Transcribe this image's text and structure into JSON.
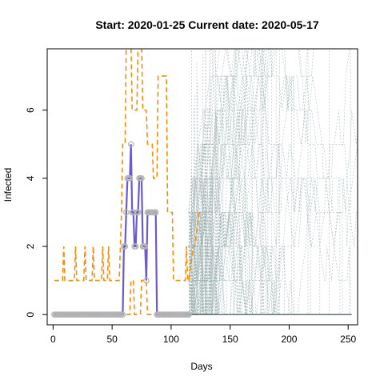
{
  "chart_data": {
    "type": "line",
    "title": "Start:  2020-01-25   Current date:  2020-05-17",
    "xlabel": "Days",
    "ylabel": "Infected",
    "xlim": [
      -5,
      258
    ],
    "ylim": [
      -0.3,
      7.8
    ],
    "xticks": [
      0,
      50,
      100,
      150,
      200,
      250
    ],
    "yticks": [
      0,
      2,
      4,
      6
    ],
    "grid": false,
    "legend": "none",
    "colors": {
      "observed_line": "#6a5acd",
      "observed_points": "#b4b4b4",
      "bounds": "#ff8c00",
      "simulations": "#9fb2b2",
      "prediction": "#4a6a6a"
    },
    "series": [
      {
        "style": "observed",
        "x": [
          1,
          2,
          3,
          4,
          5,
          6,
          7,
          8,
          9,
          10,
          11,
          12,
          13,
          14,
          15,
          16,
          17,
          18,
          19,
          20,
          21,
          22,
          23,
          24,
          25,
          26,
          27,
          28,
          29,
          30,
          31,
          32,
          33,
          34,
          35,
          36,
          37,
          38,
          39,
          40,
          41,
          42,
          43,
          44,
          45,
          46,
          47,
          48,
          49,
          50,
          51,
          52,
          53,
          54,
          55,
          56,
          57,
          58,
          59,
          60,
          61,
          62,
          63,
          64,
          65,
          66,
          67,
          68,
          69,
          70,
          71,
          72,
          73,
          74,
          75,
          76,
          77,
          78,
          79,
          80,
          81,
          82,
          83,
          84,
          85,
          86,
          87,
          88,
          89,
          90,
          91,
          92,
          93,
          94,
          95,
          96,
          97,
          98,
          99,
          100,
          101,
          102,
          103,
          104,
          105,
          106,
          107,
          108,
          109,
          110,
          111,
          112,
          113,
          114,
          115
        ],
        "y": [
          0,
          0,
          0,
          0,
          0,
          0,
          0,
          0,
          0,
          0,
          0,
          0,
          0,
          0,
          0,
          0,
          0,
          0,
          0,
          0,
          0,
          0,
          0,
          0,
          0,
          0,
          0,
          0,
          0,
          0,
          0,
          0,
          0,
          0,
          0,
          0,
          0,
          0,
          0,
          0,
          0,
          0,
          0,
          0,
          0,
          0,
          0,
          0,
          0,
          0,
          0,
          0,
          0,
          0,
          0,
          0,
          0,
          0,
          0,
          2,
          2,
          3,
          4,
          4,
          4,
          5,
          3,
          3,
          2,
          2,
          3,
          3,
          4,
          4,
          4,
          2,
          2,
          2,
          1,
          3,
          3,
          3,
          3,
          3,
          3,
          3,
          3,
          0,
          0,
          0,
          0,
          0,
          0,
          0,
          0,
          0,
          0,
          0,
          0,
          0,
          0,
          0,
          0,
          0,
          0,
          0,
          0,
          0,
          0,
          0,
          0,
          0,
          0,
          0,
          0
        ]
      },
      {
        "style": "bound",
        "x": [
          1,
          8,
          9,
          10,
          11,
          18,
          19,
          20,
          21,
          26,
          27,
          28,
          29,
          33,
          34,
          35,
          36,
          41,
          42,
          43,
          44,
          46,
          47,
          48,
          49,
          56,
          57,
          58,
          59,
          61,
          62,
          66,
          67,
          71,
          72,
          75,
          76,
          79,
          80,
          84,
          85,
          88,
          89,
          96,
          97,
          101,
          102,
          112,
          113,
          114,
          115,
          119,
          120,
          124,
          125
        ],
        "y": [
          1,
          1,
          2,
          1,
          1,
          1,
          2,
          1,
          1,
          1,
          2,
          1,
          1,
          1,
          2,
          1,
          1,
          1,
          2,
          1,
          1,
          1,
          2,
          1,
          1,
          1,
          2,
          3,
          5,
          5,
          8,
          8,
          6,
          6,
          8,
          8,
          6,
          6,
          5,
          5,
          4,
          4,
          7,
          7,
          3,
          3,
          1,
          1,
          2,
          1,
          1,
          2,
          2,
          3,
          3
        ]
      },
      {
        "style": "bound",
        "x": [
          1,
          58,
          59,
          65,
          66,
          68,
          69,
          74,
          75,
          79,
          80,
          83,
          84,
          98,
          99,
          125
        ],
        "y": [
          0,
          0,
          0,
          0,
          1,
          1,
          0,
          0,
          1,
          1,
          0,
          0,
          0,
          0,
          0,
          0
        ]
      },
      {
        "style": "prediction",
        "x": [
          115,
          253
        ],
        "y": [
          0,
          0
        ]
      }
    ],
    "simulations": {
      "x_start": 115,
      "x_end": 253,
      "description_values": "Ensemble of simulated trajectories (values 0–8) spanning days 115–253"
    }
  }
}
